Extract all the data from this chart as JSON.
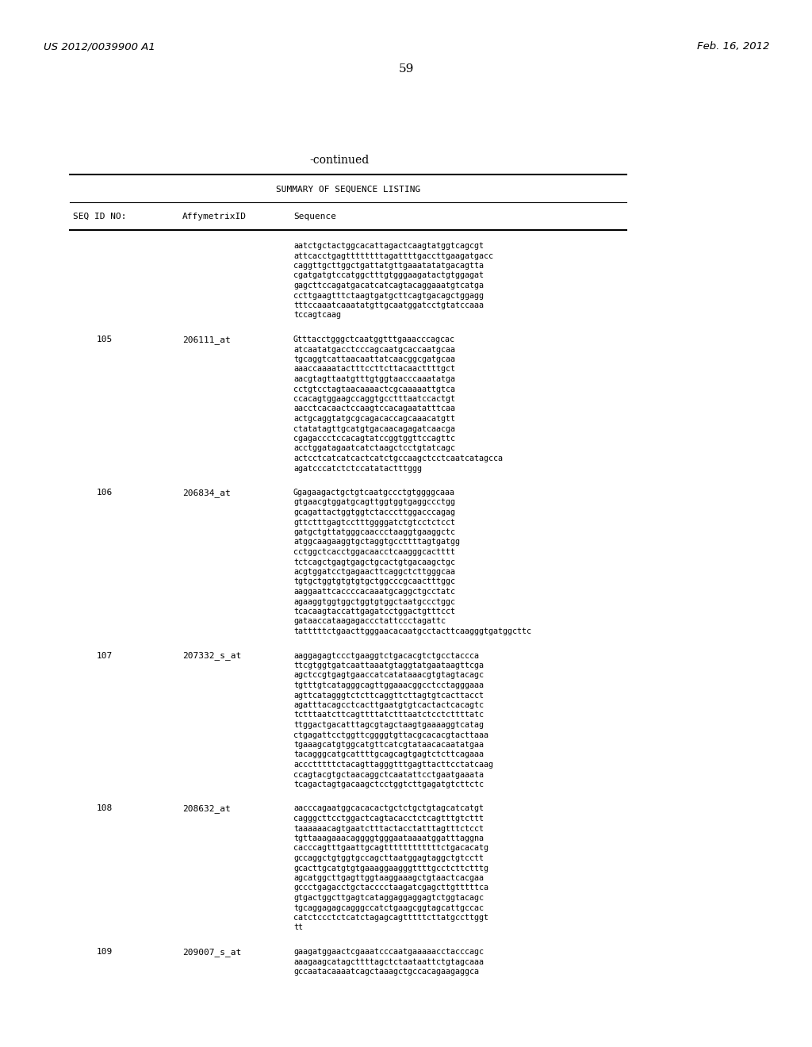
{
  "header_left": "US 2012/0039900 A1",
  "header_right": "Feb. 16, 2012",
  "page_number": "59",
  "continued_label": "-continued",
  "table_title": "SUMMARY OF SEQUENCE LISTING",
  "col1_header": "SEQ ID NO:",
  "col2_header": "AffymetrixID",
  "col3_header": "Sequence",
  "entries": [
    {
      "seq_id": "",
      "affy_id": "",
      "sequence": "aatctgctactggcacattagactcaagtatggtcagcgt\nattcacctgagttttttttagattttgaccttgaagatgacc\ncaggttgcttggctgattatgttgaaatatatgacagtta\ncgatgatgtccatggctttgtgggaagatactgtggagat\ngagcttccagatgacatcatcagtacaggaaatgtcatga\nccttgaagtttctaagtgatgcttcagtgacagctggagg\ntttccaaatcaaatatgttgcaatggatcctgtatccaaa\ntccagtcaag"
    },
    {
      "seq_id": "105",
      "affy_id": "206111_at",
      "sequence": "Gtttacctgggctcaatggtttgaaacccagcac\natcaatatgacctcccagcaatgcaccaatgcaa\ntgcaggtcattaacaattatcaacggcgatgcaa\naaaccaaaatactttccttcttacaacttttgct\naacgtagttaatgtttgtggtaacccaaatatga\ncctgtcctagtaacaaaactcgcaaaaattgtca\nccacagtggaagccaggtgcctttaatccactgt\naacctcacaactccaagtccacagaatatttcaa\nactgcaggtatgcgcagacaccagcaaacatgtt\nctatatagttgcatgtgacaacagagatcaacga\ncgagaccctccacagtatccggtggttccagttc\nacctggatagaatcatctaagctcctgtatcagc\nactcctcatcatcactcatctgccaagctcctcaatcatagcca\nagatcccatctctccatatactttggg"
    },
    {
      "seq_id": "106",
      "affy_id": "206834_at",
      "sequence": "Ggagaagactgctgtcaatgccctgtggggcaaa\ngtgaacgtggatgcagttggtggtgaggccctgg\ngcagattactggtggtctacccttggacccagag\ngttctttgagtcctttggggatctgtcctctcct\ngatgctgttatgggcaaccctaaggtgaaggctc\natggcaagaaggtgctaggtgccttttagtgatgg\ncctggctcacctggacaacctcaagggcactttt\ntctcagctgagtgagctgcactgtgacaagctgc\nacgtggatcctgagaacttcaggctcttgggcaa\ntgtgctggtgtgtgtgctggcccgcaactttggc\naaggaattcaccccacaaatgcaggctgcctatc\nagaaggtggtggctggtgtggctaatgccctggc\ntcacaagtaccattgagatcctggactgtttcct\ngataaccataagagaccctattccctagattc\ntatttttctgaacttgggaacacaatgcctacttcaagggtgatggcttc"
    },
    {
      "seq_id": "107",
      "affy_id": "207332_s_at",
      "sequence": "aaggagagtccctgaaggtctgacacgtctgcctaccca\nttcgtggtgatcaattaaatgtaggtatgaataagttcga\nagctccgtgagtgaaccatcatataaacgtgtagtacagc\ntgtttgtcatagggcagttggaaacggcctcctagggaaa\nagttcatagggtctcttcaggttcttagtgtcacttacct\nagatttacagcctcacttgaatgtgtcactactcacagtc\ntctttaatcttcagttttatctttaatctcctcttttatc\nttggactgacatttagcgtagctaagtgaaaaggtcatag\nctgagattcctggttcggggtgttacgcacacgtacttaaa\ntgaaagcatgtggcatgttcatcgtataacacaatatgaa\ntacagggcatgcattttgcagcagtgagtctcttcagaaa\naccctttttctacagttagggtttgagttacttcctatcaag\nccagtacgtgctaacaggctcaatattcctgaatgaaata\ntcagactagtgacaagctcctggtcttgagatgtcttctc"
    },
    {
      "seq_id": "108",
      "affy_id": "208632_at",
      "sequence": "aacccagaatggcacacactgctctgctgtagcatcatgt\ncagggcttcctggactcagtacacctctcagtttgtcttt\ntaaaaaacagtgaatctttactacctatttagtttctcct\ntgttaaagaaacaggggtgggaataaaatggatttaggna\ncacccagtttgaattgcagttttttttttttctgacacatg\ngccaggctgtggtgccagcttaatggagtaggctgtcctt\ngcacttgcatgtgtgaaaggaagggttttgcctcttctttg\nagcatggcttgagttggtaaggaaagctgtaactcacgaa\ngccctgagacctgctacccctaagatcgagcttgtttttca\ngtgactggcttgagtcataggaggaggagtctggtacagc\ntgcaggagagcagggccatctgaagcggtagcattgccac\ncatctccctctcatctagagcagtttttcttatgccttggt\ntt"
    },
    {
      "seq_id": "109",
      "affy_id": "209007_s_at",
      "sequence": "gaagatggaactcgaaatcccaatgaaaaacctacccagc\naaagaagcatagcttttagctctaataattctgtagcaaa\ngccaatacaaaatcagctaaagctgccacagaagaggca"
    }
  ]
}
